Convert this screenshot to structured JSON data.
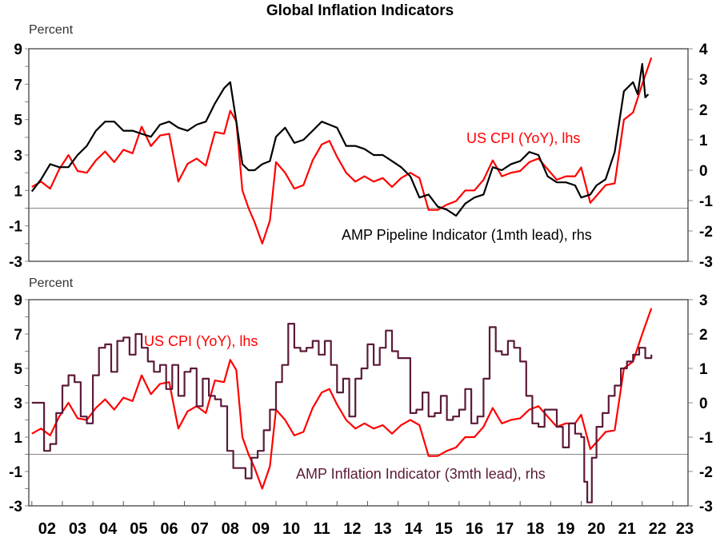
{
  "chart_data": [
    {
      "type": "line",
      "title": "Global Inflation Indicators",
      "panel": "top",
      "ylabel_left": "Percent",
      "ylim_left": [
        -3,
        9
      ],
      "yticks_left": [
        "9",
        "7",
        "5",
        "3",
        "1",
        "-1",
        "-3"
      ],
      "ylim_right": [
        -3,
        4
      ],
      "yticks_right": [
        "4",
        "3",
        "2",
        "1",
        "0",
        "-1",
        "-2",
        "-3"
      ],
      "zero_line": 0,
      "xlim": [
        2001.9,
        2023.5
      ],
      "series": [
        {
          "name": "US CPI (YoY), lhs",
          "label": "US CPI (YoY), lhs",
          "axis": "left",
          "color": "#ff0000",
          "x": [
            2002.0,
            2002.3,
            2002.6,
            2002.9,
            2003.2,
            2003.5,
            2003.8,
            2004.1,
            2004.4,
            2004.7,
            2005.0,
            2005.3,
            2005.6,
            2005.9,
            2006.2,
            2006.5,
            2006.8,
            2007.1,
            2007.4,
            2007.7,
            2008.0,
            2008.3,
            2008.5,
            2008.7,
            2008.9,
            2009.1,
            2009.3,
            2009.55,
            2009.8,
            2010.0,
            2010.3,
            2010.6,
            2010.9,
            2011.2,
            2011.5,
            2011.75,
            2012.0,
            2012.3,
            2012.6,
            2012.9,
            2013.2,
            2013.5,
            2013.8,
            2014.1,
            2014.4,
            2014.7,
            2015.0,
            2015.3,
            2015.6,
            2015.9,
            2016.2,
            2016.5,
            2016.8,
            2017.1,
            2017.4,
            2017.7,
            2018.0,
            2018.3,
            2018.6,
            2018.9,
            2019.2,
            2019.5,
            2019.8,
            2020.0,
            2020.3,
            2020.5,
            2020.8,
            2021.1,
            2021.4,
            2021.7,
            2022.0,
            2022.3
          ],
          "values": [
            1.2,
            1.5,
            1.1,
            2.2,
            3.0,
            2.1,
            2.0,
            2.7,
            3.2,
            2.6,
            3.3,
            3.1,
            4.6,
            3.5,
            4.1,
            4.2,
            1.5,
            2.5,
            2.8,
            2.4,
            4.3,
            4.2,
            5.5,
            4.9,
            1.0,
            0.0,
            -0.8,
            -2.0,
            -0.7,
            2.6,
            2.0,
            1.1,
            1.3,
            2.7,
            3.6,
            3.8,
            2.9,
            2.0,
            1.5,
            1.8,
            1.5,
            1.7,
            1.2,
            1.7,
            2.0,
            1.7,
            -0.1,
            -0.1,
            0.2,
            0.4,
            1.0,
            1.0,
            1.6,
            2.7,
            1.8,
            2.0,
            2.1,
            2.6,
            2.8,
            2.2,
            1.6,
            1.8,
            1.8,
            2.3,
            0.3,
            0.7,
            1.3,
            1.4,
            5.0,
            5.4,
            7.0,
            8.5
          ]
        },
        {
          "name": "AMP Pipeline Indicator (1mth lead), rhs",
          "label": "AMP Pipeline Indicator (1mth lead), rhs",
          "axis": "right",
          "color": "#000000",
          "x": [
            2002.0,
            2002.3,
            2002.6,
            2002.9,
            2003.2,
            2003.5,
            2003.8,
            2004.1,
            2004.4,
            2004.7,
            2005.0,
            2005.3,
            2005.6,
            2005.9,
            2006.2,
            2006.5,
            2006.8,
            2007.1,
            2007.4,
            2007.7,
            2008.0,
            2008.3,
            2008.5,
            2008.7,
            2008.9,
            2009.1,
            2009.3,
            2009.55,
            2009.8,
            2010.0,
            2010.3,
            2010.6,
            2010.9,
            2011.2,
            2011.5,
            2011.75,
            2012.0,
            2012.3,
            2012.6,
            2012.9,
            2013.2,
            2013.5,
            2013.8,
            2014.1,
            2014.4,
            2014.7,
            2015.0,
            2015.3,
            2015.6,
            2015.9,
            2016.2,
            2016.5,
            2016.8,
            2017.1,
            2017.4,
            2017.7,
            2018.0,
            2018.3,
            2018.6,
            2018.9,
            2019.2,
            2019.5,
            2019.8,
            2020.0,
            2020.3,
            2020.5,
            2020.8,
            2021.1,
            2021.4,
            2021.7,
            2021.85,
            2022.0,
            2022.1,
            2022.2
          ],
          "values": [
            -0.7,
            -0.3,
            0.2,
            0.1,
            0.1,
            0.5,
            0.8,
            1.3,
            1.6,
            1.6,
            1.3,
            1.3,
            1.2,
            1.1,
            1.5,
            1.6,
            1.4,
            1.3,
            1.5,
            1.6,
            2.2,
            2.7,
            2.9,
            1.6,
            0.2,
            0.0,
            0.0,
            0.2,
            0.3,
            1.1,
            1.4,
            0.9,
            1.0,
            1.3,
            1.6,
            1.5,
            1.4,
            0.8,
            0.8,
            0.7,
            0.5,
            0.5,
            0.3,
            0.1,
            -0.2,
            -0.9,
            -0.8,
            -1.2,
            -1.3,
            -1.5,
            -1.1,
            -0.9,
            -0.8,
            0.1,
            0.0,
            0.2,
            0.3,
            0.6,
            0.5,
            -0.2,
            -0.4,
            -0.4,
            -0.5,
            -0.9,
            -0.8,
            -0.5,
            -0.3,
            0.6,
            2.6,
            2.9,
            2.5,
            3.5,
            2.4,
            2.5
          ]
        }
      ]
    },
    {
      "type": "line",
      "panel": "bottom",
      "ylabel_left": "Percent",
      "ylim_left": [
        -3,
        9
      ],
      "yticks_left": [
        "9",
        "7",
        "5",
        "3",
        "1",
        "-1",
        "-3"
      ],
      "ylim_right": [
        -3,
        3
      ],
      "yticks_right": [
        "3",
        "2",
        "1",
        "0",
        "-1",
        "-2",
        "-3"
      ],
      "zero_line": 0,
      "xlim": [
        2001.9,
        2023.5
      ],
      "xticks": [
        "02",
        "03",
        "04",
        "05",
        "06",
        "07",
        "08",
        "09",
        "10",
        "11",
        "12",
        "13",
        "14",
        "15",
        "16",
        "17",
        "18",
        "19",
        "20",
        "21",
        "22",
        "23"
      ],
      "series": [
        {
          "name": "US CPI (YoY), lhs",
          "label": "US CPI (YoY), lhs",
          "axis": "left",
          "color": "#ff0000",
          "x": [
            2002.0,
            2002.3,
            2002.6,
            2002.9,
            2003.2,
            2003.5,
            2003.8,
            2004.1,
            2004.4,
            2004.7,
            2005.0,
            2005.3,
            2005.6,
            2005.9,
            2006.2,
            2006.5,
            2006.8,
            2007.1,
            2007.4,
            2007.7,
            2008.0,
            2008.3,
            2008.5,
            2008.7,
            2008.9,
            2009.1,
            2009.3,
            2009.55,
            2009.8,
            2010.0,
            2010.3,
            2010.6,
            2010.9,
            2011.2,
            2011.5,
            2011.75,
            2012.0,
            2012.3,
            2012.6,
            2012.9,
            2013.2,
            2013.5,
            2013.8,
            2014.1,
            2014.4,
            2014.7,
            2015.0,
            2015.3,
            2015.6,
            2015.9,
            2016.2,
            2016.5,
            2016.8,
            2017.1,
            2017.4,
            2017.7,
            2018.0,
            2018.3,
            2018.6,
            2018.9,
            2019.2,
            2019.5,
            2019.8,
            2020.0,
            2020.3,
            2020.5,
            2020.8,
            2021.1,
            2021.4,
            2021.7,
            2022.0,
            2022.3
          ],
          "values": [
            1.2,
            1.5,
            1.1,
            2.2,
            3.0,
            2.1,
            2.0,
            2.7,
            3.2,
            2.6,
            3.3,
            3.1,
            4.6,
            3.5,
            4.1,
            4.2,
            1.5,
            2.5,
            2.8,
            2.4,
            4.3,
            4.2,
            5.5,
            4.9,
            1.0,
            0.0,
            -0.8,
            -2.0,
            -0.7,
            2.6,
            2.0,
            1.1,
            1.3,
            2.7,
            3.6,
            3.8,
            2.9,
            2.0,
            1.5,
            1.8,
            1.5,
            1.7,
            1.2,
            1.7,
            2.0,
            1.7,
            -0.1,
            -0.1,
            0.2,
            0.4,
            1.0,
            1.0,
            1.6,
            2.7,
            1.8,
            2.0,
            2.1,
            2.6,
            2.8,
            2.2,
            1.6,
            1.8,
            1.8,
            2.3,
            0.3,
            0.7,
            1.3,
            1.4,
            5.0,
            5.4,
            7.0,
            8.5
          ]
        },
        {
          "name": "AMP Inflation Indicator (3mth lead), rhs",
          "label": "AMP Inflation Indicator (3mth lead), rhs",
          "axis": "right",
          "color": "#5b1a3a",
          "step": true,
          "x": [
            2002.0,
            2002.25,
            2002.4,
            2002.6,
            2002.8,
            2003.0,
            2003.2,
            2003.4,
            2003.6,
            2003.8,
            2004.0,
            2004.2,
            2004.4,
            2004.6,
            2004.8,
            2005.0,
            2005.2,
            2005.4,
            2005.6,
            2005.8,
            2006.0,
            2006.2,
            2006.4,
            2006.6,
            2006.8,
            2007.0,
            2007.2,
            2007.4,
            2007.6,
            2007.8,
            2008.0,
            2008.2,
            2008.4,
            2008.6,
            2008.8,
            2009.0,
            2009.2,
            2009.4,
            2009.6,
            2009.8,
            2010.0,
            2010.2,
            2010.4,
            2010.6,
            2010.8,
            2011.0,
            2011.2,
            2011.4,
            2011.6,
            2011.8,
            2012.0,
            2012.2,
            2012.4,
            2012.6,
            2012.8,
            2013.0,
            2013.2,
            2013.4,
            2013.6,
            2013.8,
            2014.0,
            2014.2,
            2014.4,
            2014.6,
            2014.8,
            2015.0,
            2015.2,
            2015.4,
            2015.6,
            2015.8,
            2016.0,
            2016.2,
            2016.4,
            2016.6,
            2016.8,
            2017.0,
            2017.2,
            2017.4,
            2017.6,
            2017.8,
            2018.0,
            2018.2,
            2018.4,
            2018.6,
            2018.8,
            2019.0,
            2019.2,
            2019.4,
            2019.6,
            2019.8,
            2020.0,
            2020.1,
            2020.2,
            2020.35,
            2020.5,
            2020.7,
            2020.9,
            2021.1,
            2021.3,
            2021.5,
            2021.7,
            2021.9,
            2022.1,
            2022.3
          ],
          "values": [
            0.0,
            0.0,
            -1.4,
            -1.2,
            -0.3,
            0.5,
            0.8,
            0.6,
            -0.4,
            -0.6,
            0.8,
            1.6,
            1.7,
            0.9,
            1.8,
            1.9,
            1.4,
            2.0,
            1.6,
            1.2,
            0.9,
            1.1,
            0.4,
            1.1,
            0.2,
            0.9,
            1.0,
            -0.1,
            0.7,
            0.2,
            0.1,
            -0.1,
            -1.4,
            -1.9,
            -1.9,
            -2.2,
            -1.6,
            -1.4,
            -0.8,
            -0.2,
            0.6,
            1.1,
            2.3,
            1.6,
            1.5,
            1.6,
            1.8,
            1.4,
            1.8,
            1.1,
            0.3,
            0.7,
            -0.4,
            0.7,
            1.0,
            1.7,
            1.1,
            1.6,
            2.1,
            1.5,
            1.3,
            1.3,
            -0.3,
            -0.2,
            0.3,
            -0.4,
            -0.3,
            0.2,
            -0.5,
            -0.4,
            -0.2,
            0.4,
            -0.6,
            -0.4,
            0.7,
            2.2,
            1.5,
            1.4,
            1.8,
            1.6,
            1.2,
            0.2,
            -0.6,
            -0.7,
            -0.2,
            -0.2,
            -0.7,
            -1.3,
            -0.6,
            -0.9,
            -1.0,
            -2.3,
            -2.9,
            -1.6,
            -0.7,
            -0.3,
            0.2,
            0.5,
            1.0,
            1.2,
            1.4,
            1.6,
            1.3,
            1.4
          ]
        }
      ]
    }
  ]
}
